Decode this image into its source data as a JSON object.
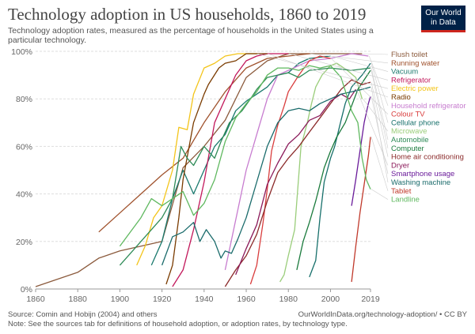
{
  "header": {
    "title": "Technology adoption in US households, 1860 to 2019",
    "subtitle": "Technology adoption rates, measured as the percentage of households in the United States using a particular technology.",
    "logo_line1": "Our World",
    "logo_line2": "in Data"
  },
  "footer": {
    "source": "Source: Comin and Hobijn (2004) and others",
    "url": "OurWorldInData.org/technology-adoption/ • CC BY",
    "note": "Note: See the sources tab for definitions of household adoption, or adoption rates, by technology type."
  },
  "chart_data": {
    "type": "line",
    "title": "Technology adoption in US households, 1860 to 2019",
    "xlim": [
      1860,
      2019
    ],
    "ylim": [
      0,
      100
    ],
    "x_ticks": [
      1860,
      1880,
      1900,
      1920,
      1940,
      1960,
      1980,
      2000,
      2019
    ],
    "y_ticks": [
      0,
      20,
      40,
      60,
      80,
      100
    ],
    "y_tick_labels": [
      "0%",
      "20%",
      "40%",
      "60%",
      "80%",
      "100%"
    ],
    "grid": "horizontal dashed",
    "legend": "right, end-of-line labels",
    "series": [
      {
        "name": "Flush toilet",
        "color": "#8b5a3c",
        "points": [
          [
            1860,
            1
          ],
          [
            1880,
            7
          ],
          [
            1890,
            13
          ],
          [
            1900,
            16
          ],
          [
            1920,
            20
          ],
          [
            1930,
            51
          ],
          [
            1940,
            60
          ],
          [
            1950,
            71
          ],
          [
            1960,
            89
          ],
          [
            1970,
            96
          ],
          [
            1980,
            99
          ],
          [
            1990,
            99
          ],
          [
            2000,
            99
          ],
          [
            2010,
            99
          ],
          [
            2015,
            99
          ]
        ]
      },
      {
        "name": "Running water",
        "color": "#a0522d",
        "points": [
          [
            1890,
            24
          ],
          [
            1900,
            32
          ],
          [
            1910,
            40
          ],
          [
            1920,
            48
          ],
          [
            1930,
            55
          ],
          [
            1940,
            70
          ],
          [
            1950,
            83
          ],
          [
            1960,
            93
          ],
          [
            1970,
            97
          ],
          [
            1980,
            98
          ],
          [
            1990,
            99
          ]
        ]
      },
      {
        "name": "Vacuum",
        "color": "#1b7a6e",
        "points": [
          [
            1915,
            10
          ],
          [
            1920,
            20
          ],
          [
            1925,
            38
          ],
          [
            1930,
            50
          ],
          [
            1935,
            40
          ],
          [
            1940,
            50
          ],
          [
            1945,
            60
          ],
          [
            1950,
            65
          ],
          [
            1955,
            75
          ],
          [
            1960,
            79
          ],
          [
            1965,
            82
          ],
          [
            1970,
            85
          ],
          [
            1975,
            90
          ],
          [
            1980,
            91
          ],
          [
            1985,
            95
          ],
          [
            1990,
            97
          ],
          [
            2000,
            98
          ]
        ]
      },
      {
        "name": "Refrigerator",
        "color": "#c2185b",
        "points": [
          [
            1925,
            1
          ],
          [
            1930,
            8
          ],
          [
            1935,
            25
          ],
          [
            1940,
            45
          ],
          [
            1945,
            70
          ],
          [
            1950,
            80
          ],
          [
            1955,
            90
          ],
          [
            1960,
            96
          ],
          [
            1965,
            98
          ],
          [
            1970,
            99
          ],
          [
            1980,
            99
          ]
        ]
      },
      {
        "name": "Electric power",
        "color": "#f3c419",
        "points": [
          [
            1908,
            10
          ],
          [
            1912,
            18
          ],
          [
            1916,
            30
          ],
          [
            1920,
            35
          ],
          [
            1925,
            50
          ],
          [
            1928,
            68
          ],
          [
            1932,
            67
          ],
          [
            1935,
            82
          ],
          [
            1940,
            93
          ],
          [
            1945,
            95
          ],
          [
            1950,
            98
          ],
          [
            1956,
            99
          ],
          [
            1965,
            99
          ]
        ]
      },
      {
        "name": "Radio",
        "color": "#7a3b00",
        "points": [
          [
            1922,
            2
          ],
          [
            1925,
            10
          ],
          [
            1928,
            30
          ],
          [
            1930,
            46
          ],
          [
            1935,
            70
          ],
          [
            1940,
            82
          ],
          [
            1942,
            86
          ],
          [
            1947,
            93
          ],
          [
            1950,
            95
          ],
          [
            1955,
            96
          ],
          [
            1960,
            99
          ],
          [
            1970,
            99
          ]
        ]
      },
      {
        "name": "Household refrigerator",
        "color": "#c77ccf",
        "points": [
          [
            1950,
            8
          ],
          [
            1960,
            50
          ],
          [
            1965,
            65
          ],
          [
            1970,
            80
          ],
          [
            1975,
            90
          ],
          [
            1980,
            92
          ],
          [
            1990,
            96
          ],
          [
            2000,
            97
          ],
          [
            2010,
            99
          ],
          [
            2018,
            98
          ]
        ]
      },
      {
        "name": "Colour TV",
        "color": "#d93d3d",
        "points": [
          [
            1962,
            2
          ],
          [
            1965,
            10
          ],
          [
            1968,
            28
          ],
          [
            1970,
            42
          ],
          [
            1972,
            58
          ],
          [
            1975,
            69
          ],
          [
            1978,
            77
          ],
          [
            1980,
            83
          ],
          [
            1985,
            90
          ],
          [
            1990,
            96
          ],
          [
            1995,
            98
          ],
          [
            2000,
            97
          ]
        ]
      },
      {
        "name": "Cellular phone",
        "color": "#17706b",
        "points": [
          [
            1990,
            5
          ],
          [
            1993,
            12
          ],
          [
            1995,
            30
          ],
          [
            1997,
            45
          ],
          [
            2000,
            55
          ],
          [
            2002,
            60
          ],
          [
            2005,
            71
          ],
          [
            2007,
            78
          ],
          [
            2010,
            85
          ],
          [
            2015,
            90
          ],
          [
            2019,
            95
          ]
        ]
      },
      {
        "name": "Microwave",
        "color": "#9acd7a",
        "points": [
          [
            1976,
            3
          ],
          [
            1978,
            6
          ],
          [
            1980,
            14
          ],
          [
            1983,
            25
          ],
          [
            1986,
            60
          ],
          [
            1989,
            70
          ],
          [
            1991,
            78
          ],
          [
            1993,
            85
          ],
          [
            1996,
            90
          ],
          [
            2000,
            94
          ],
          [
            2003,
            95
          ],
          [
            2008,
            92
          ],
          [
            2012,
            89
          ],
          [
            2015,
            80
          ]
        ]
      },
      {
        "name": "Automobile",
        "color": "#2e8b57",
        "points": [
          [
            1900,
            10
          ],
          [
            1905,
            15
          ],
          [
            1910,
            20
          ],
          [
            1915,
            25
          ],
          [
            1920,
            30
          ],
          [
            1925,
            38
          ],
          [
            1929,
            60
          ],
          [
            1932,
            55
          ],
          [
            1935,
            52
          ],
          [
            1940,
            60
          ],
          [
            1945,
            55
          ],
          [
            1948,
            62
          ],
          [
            1952,
            70
          ],
          [
            1958,
            75
          ],
          [
            1962,
            80
          ],
          [
            1965,
            84
          ],
          [
            1970,
            89
          ],
          [
            1975,
            90
          ],
          [
            1980,
            91
          ],
          [
            1985,
            89
          ],
          [
            1990,
            92
          ],
          [
            2000,
            93
          ],
          [
            2010,
            92
          ],
          [
            2019,
            93
          ]
        ]
      },
      {
        "name": "Computer",
        "color": "#1a7a3c",
        "points": [
          [
            1984,
            8
          ],
          [
            1987,
            20
          ],
          [
            1990,
            28
          ],
          [
            1993,
            37
          ],
          [
            1997,
            51
          ],
          [
            2000,
            58
          ],
          [
            2003,
            64
          ],
          [
            2007,
            70
          ],
          [
            2010,
            77
          ],
          [
            2013,
            84
          ],
          [
            2016,
            88
          ],
          [
            2019,
            92
          ]
        ]
      },
      {
        "name": "Home air conditioning",
        "color": "#8b2a2a",
        "points": [
          [
            1950,
            1
          ],
          [
            1955,
            8
          ],
          [
            1960,
            14
          ],
          [
            1965,
            23
          ],
          [
            1970,
            37
          ],
          [
            1975,
            49
          ],
          [
            1980,
            55
          ],
          [
            1985,
            60
          ],
          [
            1990,
            66
          ],
          [
            1995,
            72
          ],
          [
            2000,
            78
          ],
          [
            2005,
            84
          ],
          [
            2010,
            88
          ],
          [
            2015,
            86
          ],
          [
            2019,
            87
          ]
        ]
      },
      {
        "name": "Dryer",
        "color": "#8b1a5a",
        "points": [
          [
            1955,
            6
          ],
          [
            1960,
            17
          ],
          [
            1965,
            27
          ],
          [
            1970,
            44
          ],
          [
            1975,
            53
          ],
          [
            1980,
            61
          ],
          [
            1985,
            65
          ],
          [
            1990,
            71
          ],
          [
            1995,
            73
          ],
          [
            2000,
            79
          ],
          [
            2005,
            82
          ],
          [
            2009,
            80
          ],
          [
            2012,
            84
          ]
        ]
      },
      {
        "name": "Smartphone usage",
        "color": "#6a1b9a",
        "points": [
          [
            2010,
            35
          ],
          [
            2012,
            46
          ],
          [
            2014,
            58
          ],
          [
            2016,
            70
          ],
          [
            2018,
            78
          ],
          [
            2019,
            81
          ]
        ]
      },
      {
        "name": "Washing machine",
        "color": "#1a6b6b",
        "points": [
          [
            1920,
            10
          ],
          [
            1925,
            22
          ],
          [
            1930,
            24
          ],
          [
            1935,
            28
          ],
          [
            1938,
            20
          ],
          [
            1941,
            25
          ],
          [
            1945,
            20
          ],
          [
            1948,
            13
          ],
          [
            1950,
            16
          ],
          [
            1953,
            15
          ],
          [
            1956,
            21
          ],
          [
            1960,
            30
          ],
          [
            1965,
            45
          ],
          [
            1970,
            60
          ],
          [
            1975,
            70
          ],
          [
            1980,
            75
          ],
          [
            1985,
            76
          ],
          [
            1990,
            75
          ],
          [
            1995,
            78
          ],
          [
            2000,
            80
          ],
          [
            2005,
            82
          ],
          [
            2010,
            83
          ],
          [
            2015,
            84
          ],
          [
            2019,
            85
          ]
        ]
      },
      {
        "name": "Tablet",
        "color": "#c0392b",
        "points": [
          [
            2010,
            3
          ],
          [
            2012,
            18
          ],
          [
            2014,
            32
          ],
          [
            2016,
            44
          ],
          [
            2018,
            56
          ],
          [
            2019,
            64
          ]
        ]
      },
      {
        "name": "Landline",
        "color": "#5fb85f",
        "points": [
          [
            1900,
            18
          ],
          [
            1905,
            24
          ],
          [
            1910,
            30
          ],
          [
            1915,
            38
          ],
          [
            1920,
            35
          ],
          [
            1925,
            38
          ],
          [
            1930,
            41
          ],
          [
            1935,
            31
          ],
          [
            1940,
            36
          ],
          [
            1945,
            46
          ],
          [
            1950,
            62
          ],
          [
            1955,
            72
          ],
          [
            1960,
            78
          ],
          [
            1965,
            83
          ],
          [
            1970,
            90
          ],
          [
            1975,
            93
          ],
          [
            1980,
            93
          ],
          [
            1985,
            92
          ],
          [
            1990,
            94
          ],
          [
            1995,
            93
          ],
          [
            2000,
            94
          ],
          [
            2005,
            89
          ],
          [
            2010,
            75
          ],
          [
            2013,
            70
          ],
          [
            2015,
            55
          ],
          [
            2017,
            46
          ],
          [
            2019,
            42
          ]
        ]
      }
    ]
  }
}
